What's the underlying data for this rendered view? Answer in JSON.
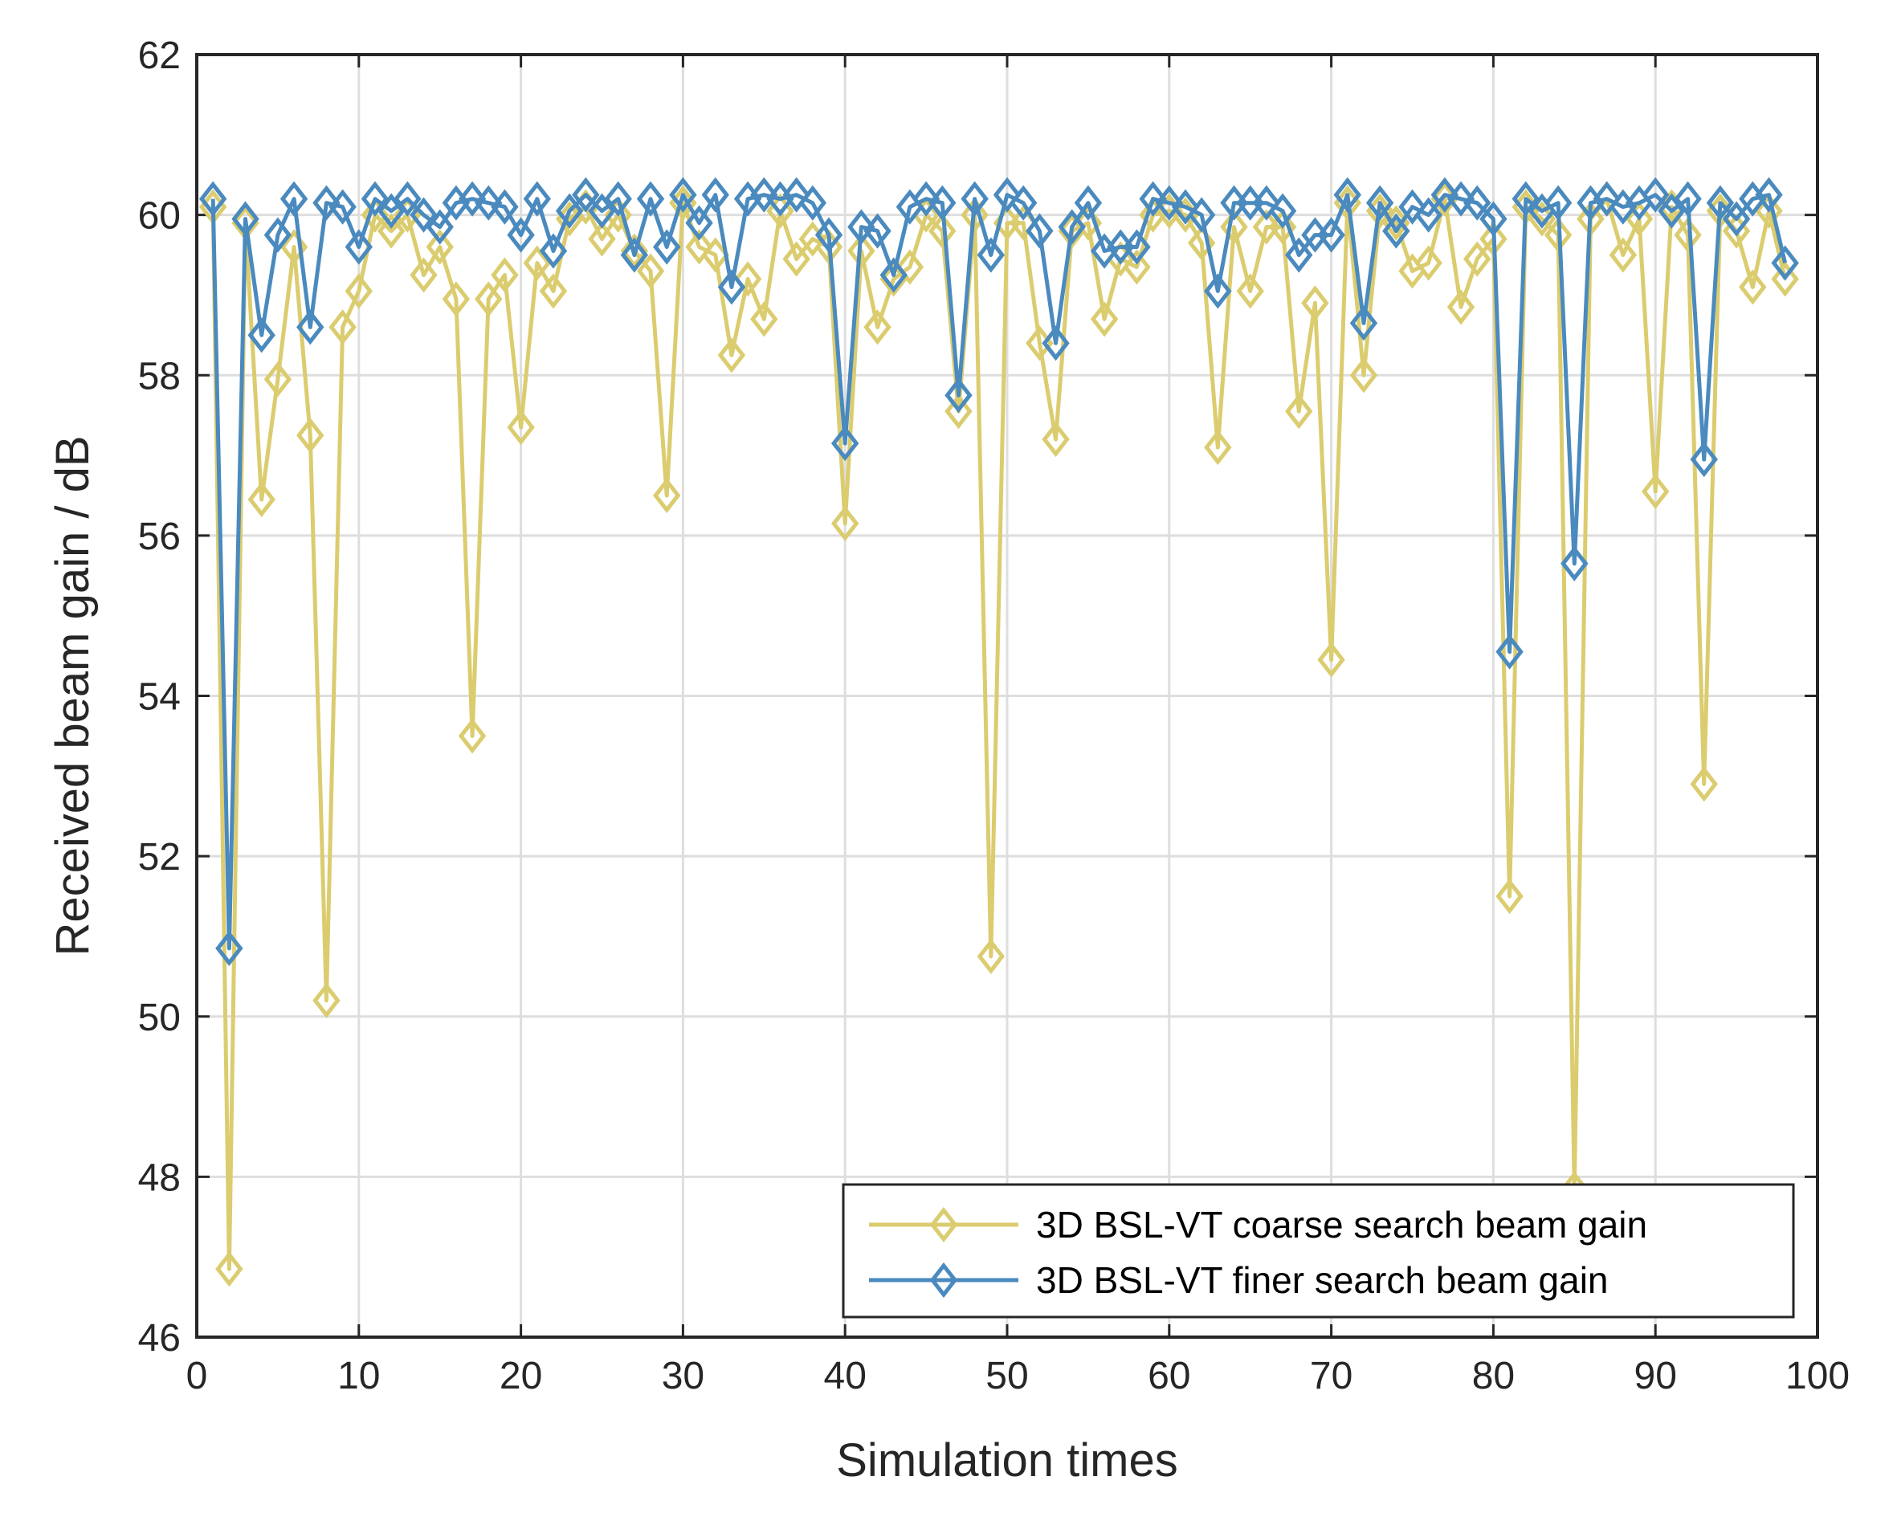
{
  "chart_data": {
    "type": "line",
    "title": "",
    "xlabel": "Simulation times",
    "ylabel": "Received beam gain / dB",
    "xlim": [
      0,
      100
    ],
    "ylim": [
      46,
      62
    ],
    "xticks": [
      0,
      10,
      20,
      30,
      40,
      50,
      60,
      70,
      80,
      90,
      100
    ],
    "yticks": [
      46,
      48,
      50,
      52,
      54,
      56,
      58,
      60,
      62
    ],
    "grid": true,
    "legend_location": "bottom-right",
    "marker": "diamond",
    "series": [
      {
        "name": "3D BSL-VT coarse search beam gain",
        "color": "#DBCC6F",
        "x": [
          1,
          2,
          3,
          4,
          5,
          6,
          7,
          8,
          9,
          10,
          11,
          12,
          13,
          14,
          15,
          16,
          17,
          18,
          19,
          20,
          21,
          22,
          23,
          24,
          25,
          26,
          27,
          28,
          29,
          30,
          31,
          32,
          33,
          34,
          35,
          36,
          37,
          38,
          39,
          40,
          41,
          42,
          43,
          44,
          45,
          46,
          47,
          48,
          49,
          50,
          51,
          52,
          53,
          54,
          55,
          56,
          57,
          58,
          59,
          60,
          61,
          62,
          63,
          64,
          65,
          66,
          67,
          68,
          69,
          70,
          71,
          72,
          73,
          74,
          75,
          76,
          77,
          78,
          79,
          80,
          81,
          82,
          83,
          84,
          85,
          86,
          87,
          88,
          89,
          90,
          91,
          92,
          93,
          94,
          95,
          96,
          97,
          98
        ],
        "values": [
          60.1,
          46.85,
          59.9,
          56.45,
          57.95,
          59.6,
          57.25,
          50.2,
          58.6,
          59.05,
          60.0,
          59.8,
          60.0,
          59.25,
          59.6,
          58.95,
          53.5,
          58.95,
          59.25,
          57.35,
          59.4,
          59.05,
          59.95,
          60.1,
          59.7,
          60.0,
          59.55,
          59.3,
          56.5,
          60.15,
          59.6,
          59.5,
          58.25,
          59.2,
          58.7,
          60.05,
          59.45,
          59.7,
          59.6,
          56.15,
          59.55,
          58.6,
          59.2,
          59.35,
          60.0,
          59.8,
          57.55,
          60.0,
          50.75,
          59.9,
          59.9,
          58.4,
          57.2,
          59.8,
          59.9,
          58.7,
          59.45,
          59.35,
          60.0,
          60.05,
          60.0,
          59.65,
          57.1,
          59.85,
          59.05,
          59.85,
          59.85,
          57.55,
          58.9,
          54.45,
          60.15,
          58.0,
          60.05,
          59.9,
          59.3,
          59.4,
          60.2,
          58.85,
          59.45,
          59.7,
          51.5,
          60.1,
          59.95,
          59.75,
          47.85,
          59.95,
          60.2,
          59.5,
          59.95,
          56.55,
          60.1,
          59.75,
          52.9,
          60.05,
          59.8,
          59.1,
          60.05,
          59.2
        ]
      },
      {
        "name": "3D BSL-VT finer search beam gain",
        "color": "#4A8ABE",
        "x": [
          1,
          2,
          3,
          4,
          5,
          6,
          7,
          8,
          9,
          10,
          11,
          12,
          13,
          14,
          15,
          16,
          17,
          18,
          19,
          20,
          21,
          22,
          23,
          24,
          25,
          26,
          27,
          28,
          29,
          30,
          31,
          32,
          33,
          34,
          35,
          36,
          37,
          38,
          39,
          40,
          41,
          42,
          43,
          44,
          45,
          46,
          47,
          48,
          49,
          50,
          51,
          52,
          53,
          54,
          55,
          56,
          57,
          58,
          59,
          60,
          61,
          62,
          63,
          64,
          65,
          66,
          67,
          68,
          69,
          70,
          71,
          72,
          73,
          74,
          75,
          76,
          77,
          78,
          79,
          80,
          81,
          82,
          83,
          84,
          85,
          86,
          87,
          88,
          89,
          90,
          91,
          92,
          93,
          94,
          95,
          96,
          97,
          98
        ],
        "values": [
          60.2,
          50.85,
          59.95,
          58.5,
          59.75,
          60.2,
          58.6,
          60.15,
          60.1,
          59.6,
          60.2,
          60.05,
          60.2,
          60.0,
          59.85,
          60.15,
          60.2,
          60.15,
          60.1,
          59.75,
          60.2,
          59.55,
          60.05,
          60.25,
          60.05,
          60.2,
          59.5,
          60.2,
          59.6,
          60.25,
          59.9,
          60.25,
          59.1,
          60.2,
          60.25,
          60.2,
          60.25,
          60.15,
          59.75,
          57.15,
          59.85,
          59.8,
          59.25,
          60.1,
          60.2,
          60.15,
          57.75,
          60.2,
          59.5,
          60.25,
          60.15,
          59.8,
          58.4,
          59.85,
          60.15,
          59.55,
          59.6,
          59.6,
          60.2,
          60.15,
          60.1,
          60.0,
          59.05,
          60.15,
          60.15,
          60.15,
          60.05,
          59.5,
          59.75,
          59.75,
          60.25,
          58.65,
          60.15,
          59.8,
          60.1,
          60.0,
          60.25,
          60.2,
          60.15,
          59.95,
          54.55,
          60.2,
          60.05,
          60.15,
          55.65,
          60.15,
          60.2,
          60.1,
          60.15,
          60.25,
          60.05,
          60.2,
          56.95,
          60.15,
          59.95,
          60.2,
          60.25,
          59.4
        ]
      }
    ]
  }
}
